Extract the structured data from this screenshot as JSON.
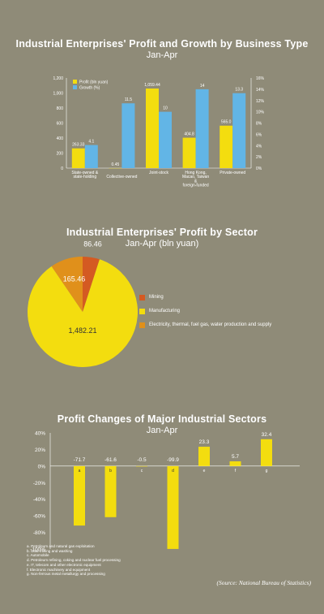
{
  "chart1": {
    "title": "Industrial Enterprises' Profit and Growth by Business Type",
    "subtitle": "Jan-Apr"
  },
  "chart2": {
    "title": "Industrial Enterprises' Profit by Sector",
    "subtitle": "Jan-Apr (bln yuan)"
  },
  "chart3": {
    "title": "Profit Changes of Major Industrial Sectors",
    "subtitle": "Jan-Apr",
    "notes": [
      "a. Petroleum and natural gas exploitation",
      "b. Coal mining and washing",
      "c. Automobile",
      "d. Petroleum refining, coking and nuclear fuel processing",
      "e. IT, telecom and other electronic equipment",
      "f. Electronic machinery and equipment",
      "g. Non-ferrous metal metallurgy and processing"
    ],
    "source": "(Source: National Bureau of Statistics)"
  },
  "colors": {
    "background": "#8f8b78",
    "yellow": "#f3dd0f",
    "blue": "#62b5e6",
    "orange_red": "#d45a22",
    "orange": "#e0901b"
  },
  "chart_data": [
    {
      "type": "bar",
      "title": "Industrial Enterprises' Profit and Growth by Business Type",
      "subtitle": "Jan-Apr",
      "categories": [
        "State-owned & state-holding",
        "Collective-owned",
        "Joint-stock",
        "Hong Kong, Macao, Taiwan & foreign-funded",
        "Private-owned"
      ],
      "series": [
        {
          "name": "Profit (bln yuan)",
          "axis": "left",
          "values": [
            263.3,
            0.45,
            1059.44,
            404.8,
            565.0
          ],
          "labels": [
            "263.33",
            "0.45",
            "1,059.44",
            "404.8",
            "565.0"
          ]
        },
        {
          "name": "Growth (%)",
          "axis": "right",
          "values": [
            4.1,
            11.5,
            10.0,
            14.0,
            13.3
          ],
          "labels": [
            "4.1",
            "11.5",
            "10",
            "14",
            "13.3"
          ]
        }
      ],
      "y_left": {
        "ticks": [
          0,
          200,
          400,
          600,
          800,
          1000,
          1200
        ],
        "tick_labels": [
          "0",
          "200",
          "400",
          "600",
          "800",
          "1,000",
          "1,200"
        ],
        "ylim": [
          0,
          1200
        ]
      },
      "y_right": {
        "ticks": [
          0,
          2,
          4,
          6,
          8,
          10,
          12,
          14,
          16
        ],
        "tick_labels": [
          "0%",
          "2%",
          "4%",
          "6%",
          "8%",
          "10%",
          "12%",
          "14%",
          "16%"
        ],
        "ylim": [
          0,
          16
        ]
      },
      "legend": "top-left",
      "grid": false
    },
    {
      "type": "pie",
      "title": "Industrial Enterprises' Profit by Sector",
      "subtitle": "Jan-Apr (bln yuan)",
      "slices": [
        {
          "name": "Mining",
          "value": 86.46,
          "label": "86.46"
        },
        {
          "name": "Manufacturing",
          "value": 1482.21,
          "label": "1,482.21"
        },
        {
          "name": "Electricity, thermal, fuel gas, water production and supply",
          "value": 165.46,
          "label": "165.46"
        }
      ],
      "legend": "right"
    },
    {
      "type": "bar",
      "title": "Profit Changes of Major Industrial Sectors",
      "subtitle": "Jan-Apr",
      "categories": [
        "a",
        "b",
        "c",
        "d",
        "e",
        "f",
        "g"
      ],
      "values": [
        -71.7,
        -61.6,
        -0.5,
        -99.9,
        23.3,
        5.7,
        32.4
      ],
      "labels": [
        "-71.7",
        "-61.6",
        "-0.5",
        "-99.9",
        "23.3",
        "5.7",
        "32.4"
      ],
      "y_ticks": [
        40,
        20,
        0,
        -20,
        -40,
        -60,
        -80,
        -100
      ],
      "y_tick_labels": [
        "40%",
        "20%",
        "0%",
        "-20%",
        "-40%",
        "-60%",
        "-80%",
        "-100%"
      ],
      "ylim": [
        -100,
        40
      ],
      "grid": false
    }
  ]
}
